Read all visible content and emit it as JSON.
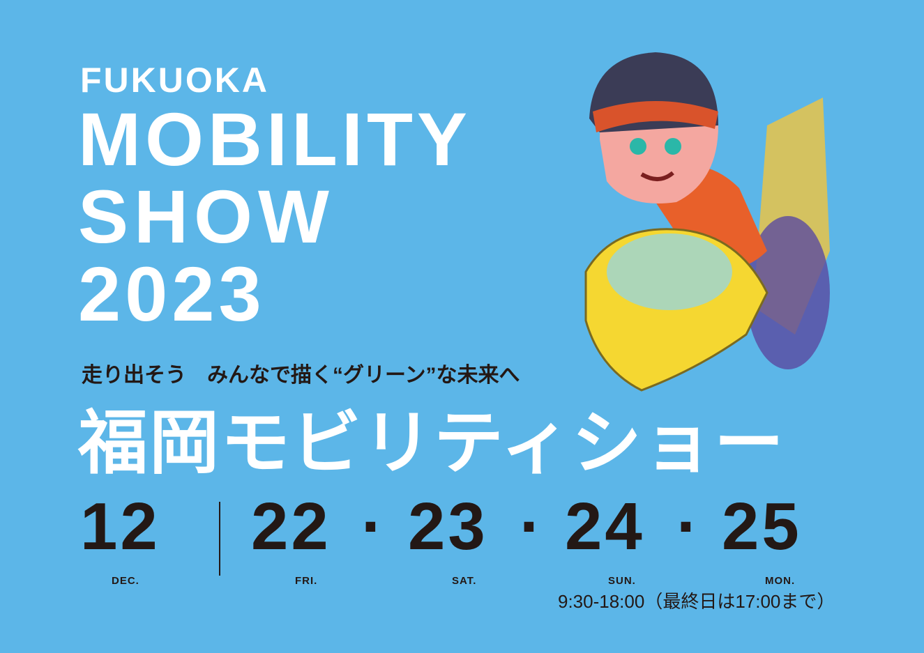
{
  "title": {
    "line1": "FUKUOKA",
    "line2": "MOBILITY",
    "line3": "SHOW",
    "line4": "2023"
  },
  "tagline": "走り出そう　みんなで描く“グリーン”な未来へ",
  "japanese_title": "福岡モビリティショー",
  "dates": {
    "month": "12",
    "month_label": "DEC.",
    "days": [
      {
        "day": "22",
        "weekday": "FRI."
      },
      {
        "day": "23",
        "weekday": "SAT."
      },
      {
        "day": "24",
        "weekday": "SUN."
      },
      {
        "day": "25",
        "weekday": "MON."
      }
    ],
    "separator": "·",
    "hours": "9:30-18:00（最終日は17:00まで）"
  },
  "colors": {
    "background": "#5cb6e8",
    "title": "#ffffff",
    "text_dark": "#231815"
  }
}
